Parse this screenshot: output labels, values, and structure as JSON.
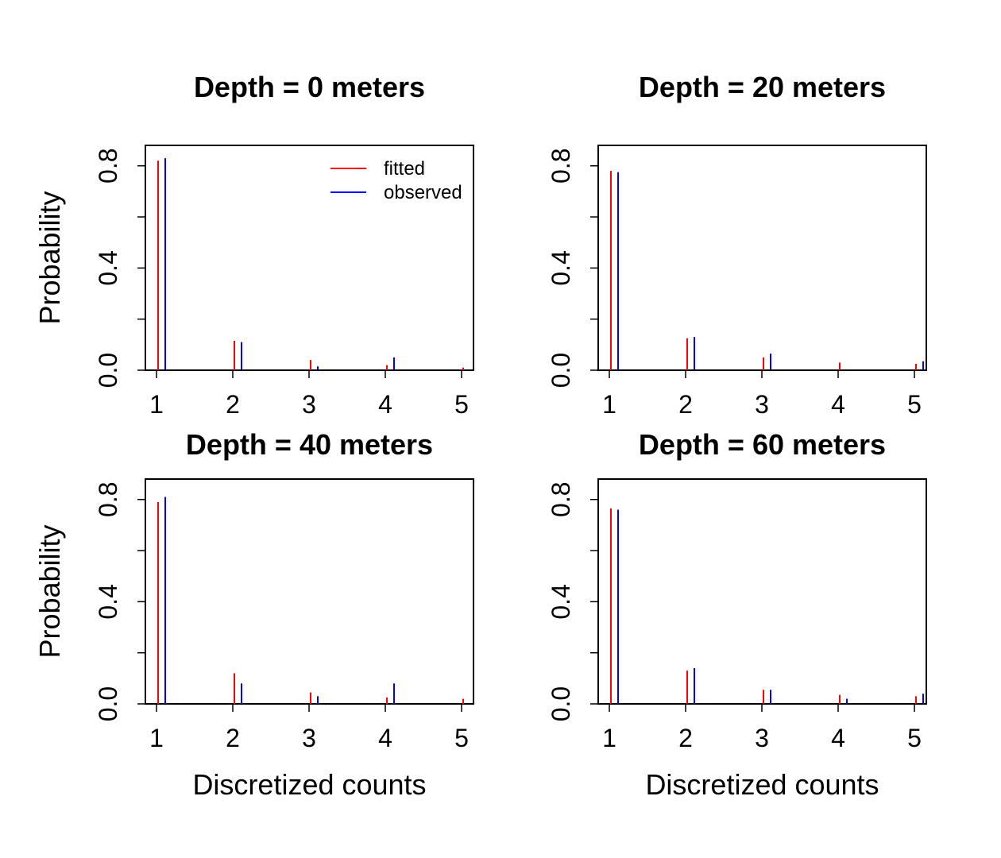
{
  "colors": {
    "fitted": "#ff0000",
    "observed": "#0000ff"
  },
  "chart_data": [
    {
      "type": "bar",
      "title": "Depth = 0 meters",
      "xlabel": "",
      "ylabel": "Probability",
      "categories": [
        "1",
        "2",
        "3",
        "4",
        "5"
      ],
      "x_tick_labels": [
        "1",
        "2",
        "3",
        "4",
        "5"
      ],
      "y_tick_labels": [
        "0.0",
        "0.4",
        "0.8"
      ],
      "ylim": [
        0,
        0.88
      ],
      "legend": {
        "position": "top-right",
        "entries": [
          "fitted",
          "observed"
        ]
      },
      "series": [
        {
          "name": "fitted",
          "values": [
            0.82,
            0.115,
            0.04,
            0.02,
            0.01
          ]
        },
        {
          "name": "observed",
          "values": [
            0.83,
            0.11,
            0.015,
            0.05,
            0.0
          ]
        }
      ]
    },
    {
      "type": "bar",
      "title": "Depth = 20 meters",
      "xlabel": "",
      "ylabel": "",
      "categories": [
        "1",
        "2",
        "3",
        "4",
        "5"
      ],
      "x_tick_labels": [
        "1",
        "2",
        "3",
        "4",
        "5"
      ],
      "y_tick_labels": [
        "0.0",
        "0.4",
        "0.8"
      ],
      "ylim": [
        0,
        0.88
      ],
      "series": [
        {
          "name": "fitted",
          "values": [
            0.78,
            0.125,
            0.05,
            0.03,
            0.025
          ]
        },
        {
          "name": "observed",
          "values": [
            0.775,
            0.13,
            0.065,
            0.0,
            0.035
          ]
        }
      ]
    },
    {
      "type": "bar",
      "title": "Depth = 40 meters",
      "xlabel": "Discretized counts",
      "ylabel": "Probability",
      "categories": [
        "1",
        "2",
        "3",
        "4",
        "5"
      ],
      "x_tick_labels": [
        "1",
        "2",
        "3",
        "4",
        "5"
      ],
      "y_tick_labels": [
        "0.0",
        "0.4",
        "0.8"
      ],
      "ylim": [
        0,
        0.88
      ],
      "series": [
        {
          "name": "fitted",
          "values": [
            0.79,
            0.12,
            0.045,
            0.025,
            0.02
          ]
        },
        {
          "name": "observed",
          "values": [
            0.81,
            0.08,
            0.03,
            0.08,
            0.0
          ]
        }
      ]
    },
    {
      "type": "bar",
      "title": "Depth = 60 meters",
      "xlabel": "Discretized counts",
      "ylabel": "",
      "categories": [
        "1",
        "2",
        "3",
        "4",
        "5"
      ],
      "x_tick_labels": [
        "1",
        "2",
        "3",
        "4",
        "5"
      ],
      "y_tick_labels": [
        "0.0",
        "0.4",
        "0.8"
      ],
      "ylim": [
        0,
        0.88
      ],
      "series": [
        {
          "name": "fitted",
          "values": [
            0.765,
            0.13,
            0.055,
            0.035,
            0.03
          ]
        },
        {
          "name": "observed",
          "values": [
            0.76,
            0.14,
            0.055,
            0.02,
            0.04
          ]
        }
      ]
    }
  ]
}
